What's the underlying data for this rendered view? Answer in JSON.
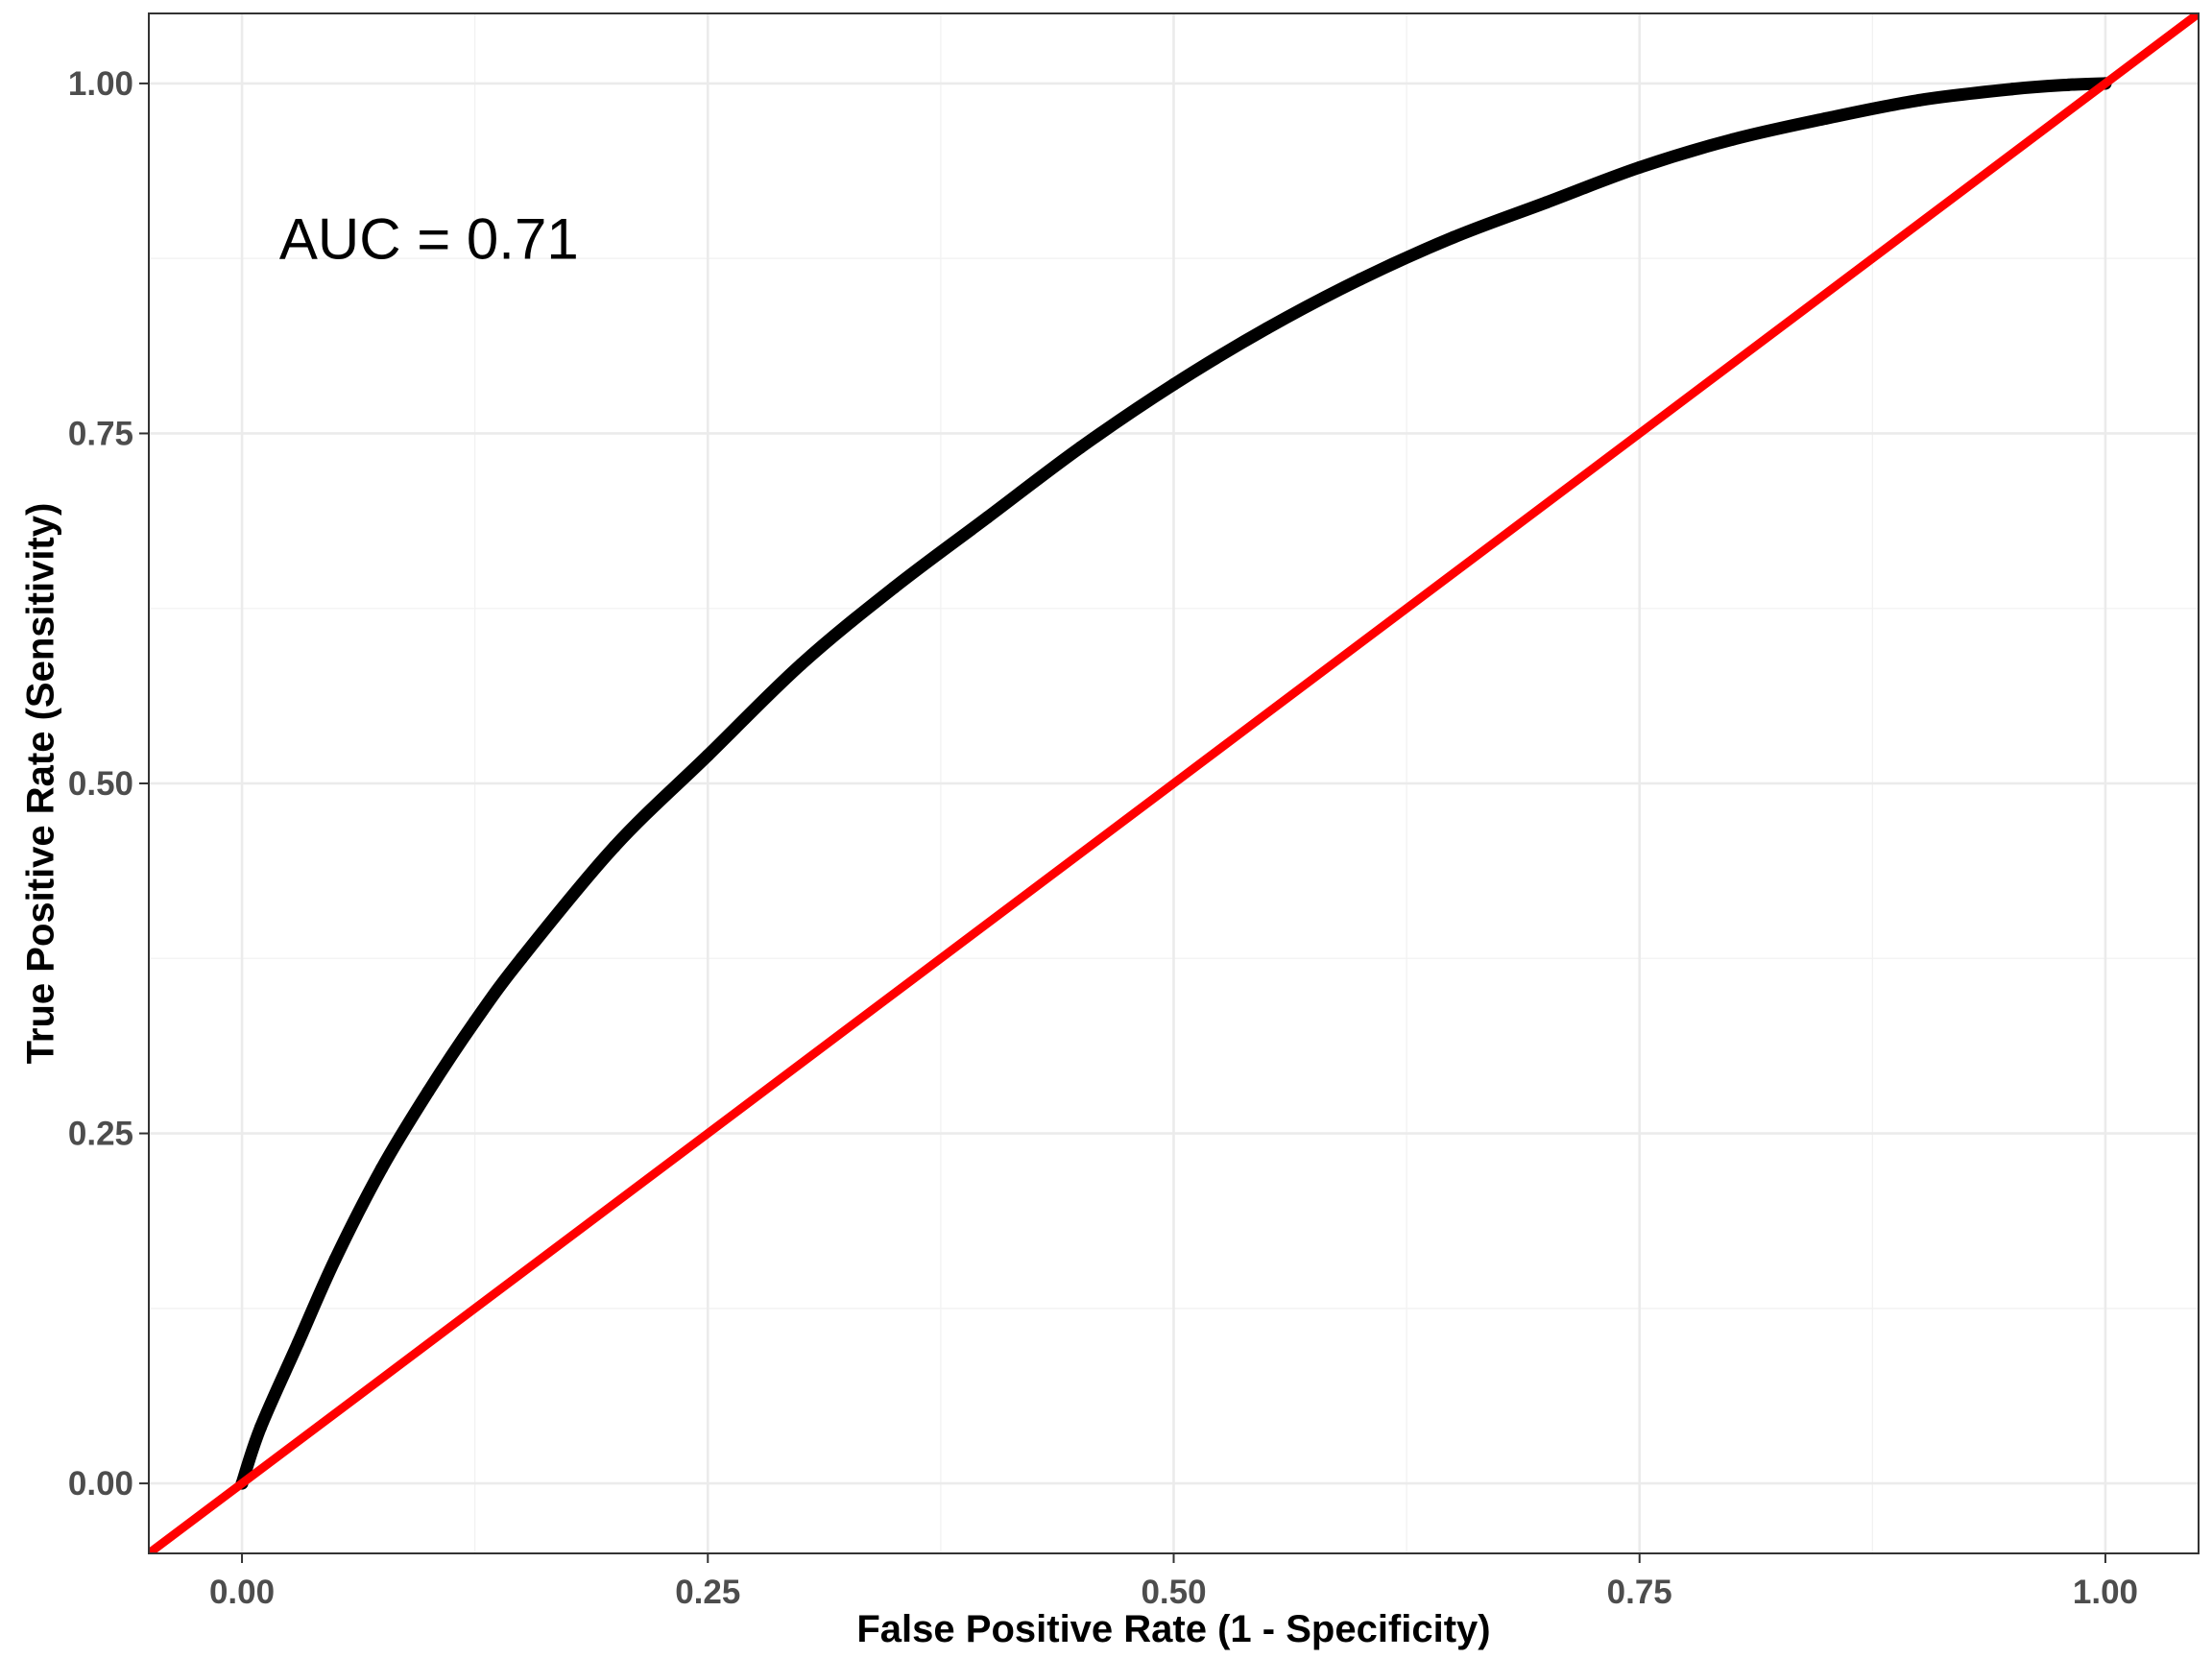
{
  "chart_data": {
    "type": "line",
    "title": "",
    "xlabel": "False Positive Rate (1 - Specificity)",
    "ylabel": "True Positive Rate (Sensitivity)",
    "xlim": [
      -0.05,
      1.05
    ],
    "ylim": [
      -0.05,
      1.05
    ],
    "x_ticks": [
      0,
      0.25,
      0.5,
      0.75,
      1
    ],
    "x_tick_labels": [
      "0.00",
      "0.25",
      "0.50",
      "0.75",
      "1.00"
    ],
    "y_ticks": [
      0,
      0.25,
      0.5,
      0.75,
      1
    ],
    "y_tick_labels": [
      "0.00",
      "0.25",
      "0.50",
      "0.75",
      "1.00"
    ],
    "grid": true,
    "legend": "none",
    "annotation": {
      "text": "AUC = 0.71",
      "x": 0.02,
      "y": 0.89
    },
    "series": [
      {
        "color": "#000000",
        "style": "line-with-points",
        "x": [
          0,
          0.01,
          0.03,
          0.05,
          0.075,
          0.1,
          0.125,
          0.15,
          0.2,
          0.25,
          0.3,
          0.35,
          0.4,
          0.45,
          0.5,
          0.55,
          0.6,
          0.65,
          0.7,
          0.75,
          0.8,
          0.85,
          0.9,
          0.95,
          0.98,
          1
        ],
        "y": [
          0,
          0.04,
          0.1,
          0.16,
          0.225,
          0.28,
          0.33,
          0.375,
          0.455,
          0.52,
          0.585,
          0.64,
          0.69,
          0.74,
          0.785,
          0.825,
          0.86,
          0.89,
          0.915,
          0.94,
          0.96,
          0.975,
          0.988,
          0.996,
          0.999,
          1
        ]
      },
      {
        "color": "#ff0000",
        "style": "reference-line",
        "x": [
          -0.05,
          1.05
        ],
        "y": [
          -0.05,
          1.05
        ]
      }
    ]
  }
}
